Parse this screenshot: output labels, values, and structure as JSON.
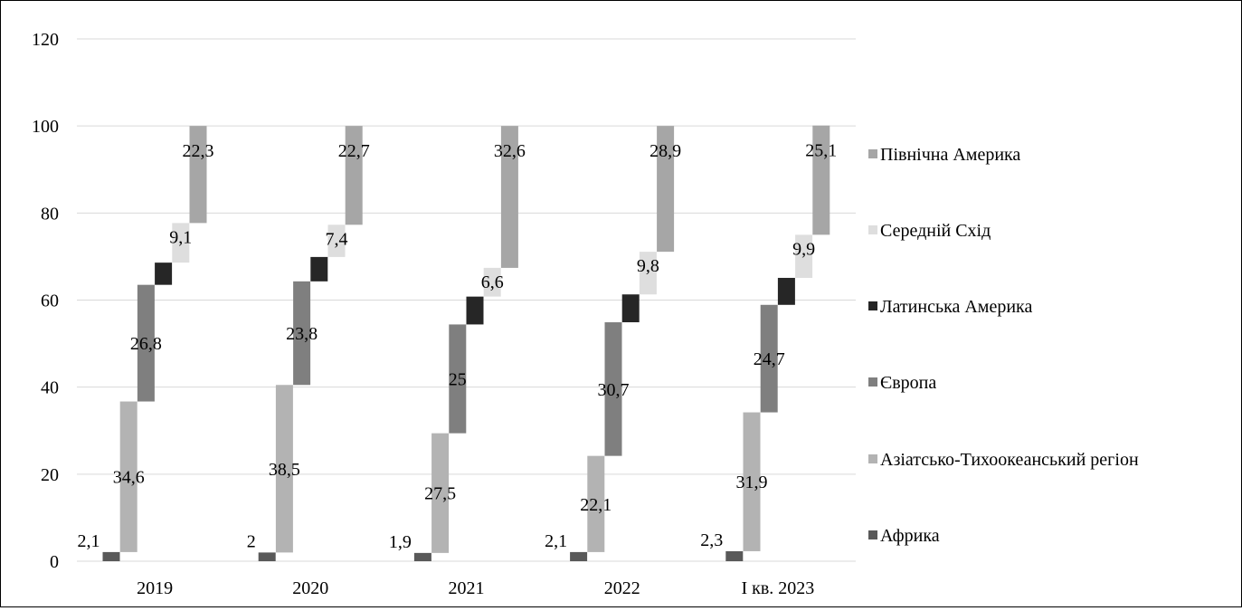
{
  "chart_data": {
    "type": "bar",
    "subtype": "stacked-waterfall",
    "categories": [
      "2019",
      "2020",
      "2021",
      "2022",
      "I кв. 2023"
    ],
    "ylim": [
      0,
      120
    ],
    "yticks": [
      0,
      20,
      40,
      60,
      80,
      100,
      120
    ],
    "ytick_labels": [
      "0",
      "20",
      "40",
      "60",
      "80",
      "100",
      "120"
    ],
    "grid": true,
    "legend_placement": "right",
    "series": [
      {
        "name": "Африка",
        "color": "#595959",
        "values": [
          2.1,
          2,
          1.9,
          2.1,
          2.3
        ],
        "labels": [
          "2,1",
          "2",
          "1,9",
          "2,1",
          "2,3"
        ]
      },
      {
        "name": "Азіатсько-Тихоокеанський регіон",
        "color": "#b3b3b3",
        "values": [
          34.6,
          38.5,
          27.5,
          22.1,
          31.9
        ],
        "labels": [
          "34,6",
          "38,5",
          "27,5",
          "22,1",
          "31,9"
        ]
      },
      {
        "name": "Європа",
        "color": "#7f7f7f",
        "values": [
          26.8,
          23.8,
          25,
          30.7,
          24.7
        ],
        "labels": [
          "26,8",
          "23,8",
          "25",
          "30,7",
          "24,7"
        ]
      },
      {
        "name": "Латинська Америка",
        "color": "#262626",
        "values": [
          5.1,
          5.6,
          6.4,
          6.4,
          6.2
        ],
        "labels": [
          "",
          "",
          "",
          "",
          ""
        ]
      },
      {
        "name": "Середній Схід",
        "color": "#dedede",
        "values": [
          9.1,
          7.4,
          6.6,
          9.8,
          9.9
        ],
        "labels": [
          "9,1",
          "7,4",
          "6,6",
          "9,8",
          "9,9"
        ]
      },
      {
        "name": "Північна Америка",
        "color": "#a6a6a6",
        "values": [
          22.3,
          22.7,
          32.6,
          28.9,
          25.1
        ],
        "labels": [
          "22,3",
          "22,7",
          "32,6",
          "28,9",
          "25,1"
        ]
      }
    ]
  }
}
